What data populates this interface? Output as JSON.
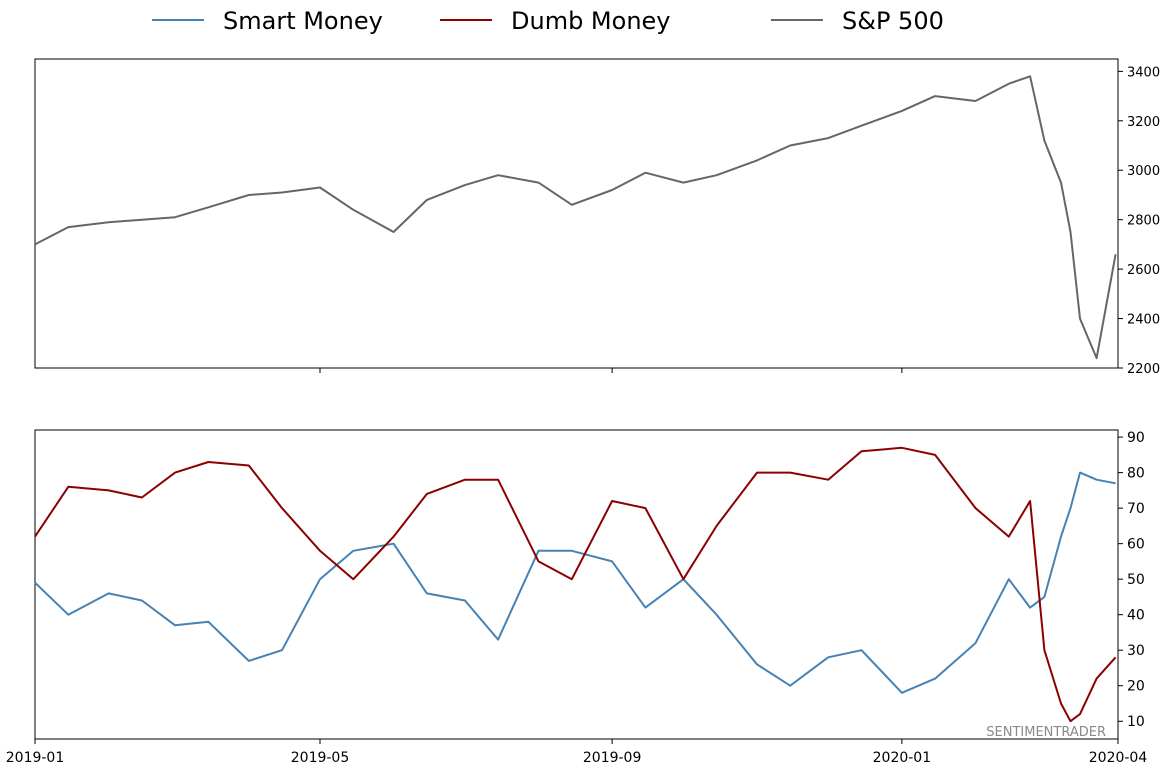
{
  "legend": [
    {
      "name": "Smart Money",
      "color": "#4682b4"
    },
    {
      "name": "Dumb Money",
      "color": "#8b0000"
    },
    {
      "name": "S&P 500",
      "color": "#666666"
    }
  ],
  "watermark": "SENTIMENTRADER",
  "chart_data": [
    {
      "type": "line",
      "panel": "top",
      "series": [
        {
          "name": "S&P 500",
          "color": "#666666",
          "x": [
            "2019-01-01",
            "2019-01-15",
            "2019-02-01",
            "2019-02-15",
            "2019-03-01",
            "2019-03-15",
            "2019-04-01",
            "2019-04-15",
            "2019-05-01",
            "2019-05-15",
            "2019-06-01",
            "2019-06-15",
            "2019-07-01",
            "2019-07-15",
            "2019-08-01",
            "2019-08-15",
            "2019-09-01",
            "2019-09-15",
            "2019-10-01",
            "2019-10-15",
            "2019-11-01",
            "2019-11-15",
            "2019-12-01",
            "2019-12-15",
            "2020-01-01",
            "2020-01-15",
            "2020-02-01",
            "2020-02-15",
            "2020-02-24",
            "2020-03-01",
            "2020-03-08",
            "2020-03-12",
            "2020-03-16",
            "2020-03-23",
            "2020-03-31"
          ],
          "values": [
            2700,
            2770,
            2790,
            2800,
            2810,
            2850,
            2900,
            2910,
            2930,
            2840,
            2750,
            2880,
            2940,
            2980,
            2950,
            2860,
            2920,
            2990,
            2950,
            2980,
            3040,
            3100,
            3130,
            3180,
            3240,
            3300,
            3280,
            3350,
            3380,
            3120,
            2950,
            2750,
            2400,
            2240,
            2660
          ]
        }
      ],
      "ylim": [
        2200,
        3450
      ],
      "yticks": [
        2200,
        2400,
        2600,
        2800,
        3000,
        3200,
        3400
      ],
      "xlim": [
        "2019-01-01",
        "2020-04-01"
      ]
    },
    {
      "type": "line",
      "panel": "bottom",
      "series": [
        {
          "name": "Smart Money",
          "color": "#4682b4",
          "x": [
            "2019-01-01",
            "2019-01-15",
            "2019-02-01",
            "2019-02-15",
            "2019-03-01",
            "2019-03-15",
            "2019-04-01",
            "2019-04-15",
            "2019-05-01",
            "2019-05-15",
            "2019-06-01",
            "2019-06-15",
            "2019-07-01",
            "2019-07-15",
            "2019-08-01",
            "2019-08-15",
            "2019-09-01",
            "2019-09-15",
            "2019-10-01",
            "2019-10-15",
            "2019-11-01",
            "2019-11-15",
            "2019-12-01",
            "2019-12-15",
            "2020-01-01",
            "2020-01-15",
            "2020-02-01",
            "2020-02-15",
            "2020-02-24",
            "2020-03-01",
            "2020-03-08",
            "2020-03-12",
            "2020-03-16",
            "2020-03-23",
            "2020-03-31"
          ],
          "values": [
            49,
            40,
            46,
            44,
            37,
            38,
            27,
            30,
            50,
            58,
            60,
            46,
            44,
            33,
            58,
            58,
            55,
            42,
            50,
            40,
            26,
            20,
            28,
            30,
            18,
            22,
            32,
            50,
            42,
            45,
            62,
            70,
            80,
            78,
            77
          ]
        },
        {
          "name": "Dumb Money",
          "color": "#8b0000",
          "x": [
            "2019-01-01",
            "2019-01-15",
            "2019-02-01",
            "2019-02-15",
            "2019-03-01",
            "2019-03-15",
            "2019-04-01",
            "2019-04-15",
            "2019-05-01",
            "2019-05-15",
            "2019-06-01",
            "2019-06-15",
            "2019-07-01",
            "2019-07-15",
            "2019-08-01",
            "2019-08-15",
            "2019-09-01",
            "2019-09-15",
            "2019-10-01",
            "2019-10-15",
            "2019-11-01",
            "2019-11-15",
            "2019-12-01",
            "2019-12-15",
            "2020-01-01",
            "2020-01-15",
            "2020-02-01",
            "2020-02-15",
            "2020-02-24",
            "2020-03-01",
            "2020-03-08",
            "2020-03-12",
            "2020-03-16",
            "2020-03-23",
            "2020-03-31"
          ],
          "values": [
            62,
            76,
            75,
            73,
            80,
            83,
            82,
            70,
            58,
            50,
            62,
            74,
            78,
            78,
            55,
            50,
            72,
            70,
            50,
            65,
            80,
            80,
            78,
            86,
            87,
            85,
            70,
            62,
            72,
            30,
            15,
            10,
            12,
            22,
            28
          ]
        }
      ],
      "ylim": [
        5,
        92
      ],
      "yticks": [
        10,
        20,
        30,
        40,
        50,
        60,
        70,
        80,
        90
      ],
      "xlim": [
        "2019-01-01",
        "2020-04-01"
      ],
      "xticks": [
        {
          "date": "2019-01-01",
          "label": "2019-01"
        },
        {
          "date": "2019-05-01",
          "label": "2019-05"
        },
        {
          "date": "2019-09-01",
          "label": "2019-09"
        },
        {
          "date": "2020-01-01",
          "label": "2020-01"
        },
        {
          "date": "2020-04-01",
          "label": "2020-04"
        }
      ]
    }
  ]
}
